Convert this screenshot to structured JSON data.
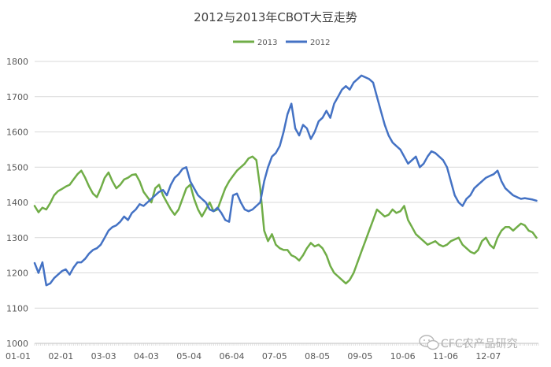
{
  "chart_data": {
    "type": "line",
    "title": "2012与2013年CBOT大豆走势",
    "xlabel": "",
    "ylabel": "",
    "ylim": [
      1000,
      1800
    ],
    "yticks": [
      1000,
      1100,
      1200,
      1300,
      1400,
      1500,
      1600,
      1700,
      1800
    ],
    "grid": true,
    "legend_position": "top-center",
    "x_tick_labels": [
      "01-01",
      "02-01",
      "03-03",
      "04-03",
      "05-04",
      "06-04",
      "07-05",
      "08-05",
      "09-05",
      "10-06",
      "11-06",
      "12-07"
    ],
    "x_range": [
      0,
      259
    ],
    "series": [
      {
        "name": "2013",
        "color": "#70ad47",
        "x": [
          0,
          2,
          4,
          6,
          8,
          10,
          12,
          14,
          16,
          18,
          20,
          22,
          24,
          26,
          28,
          30,
          32,
          34,
          36,
          38,
          40,
          42,
          44,
          46,
          48,
          50,
          52,
          54,
          56,
          58,
          60,
          62,
          64,
          66,
          68,
          70,
          72,
          74,
          76,
          78,
          80,
          82,
          84,
          86,
          88,
          90,
          92,
          94,
          96,
          98,
          100,
          102,
          104,
          106,
          108,
          110,
          112,
          114,
          116,
          118,
          120,
          122,
          124,
          126,
          128,
          130,
          132,
          134,
          136,
          138,
          140,
          142,
          144,
          146,
          148,
          150,
          152,
          154,
          156,
          158,
          160,
          162,
          164,
          166,
          168,
          170,
          172,
          174,
          176,
          178,
          180,
          182,
          184,
          186,
          188,
          190,
          192,
          194,
          196,
          198,
          200,
          202,
          204,
          206,
          208,
          210,
          212,
          214,
          216,
          218,
          220,
          222,
          224,
          226,
          228,
          230,
          232,
          234,
          236,
          238,
          240,
          242,
          244,
          246,
          248,
          250,
          252,
          254,
          256,
          258
        ],
        "values": [
          1390,
          1372,
          1385,
          1380,
          1398,
          1420,
          1432,
          1438,
          1445,
          1450,
          1465,
          1480,
          1490,
          1470,
          1445,
          1425,
          1415,
          1440,
          1470,
          1485,
          1460,
          1440,
          1450,
          1465,
          1470,
          1478,
          1480,
          1460,
          1430,
          1415,
          1400,
          1440,
          1450,
          1420,
          1400,
          1380,
          1365,
          1380,
          1410,
          1440,
          1450,
          1410,
          1380,
          1360,
          1380,
          1400,
          1375,
          1380,
          1410,
          1440,
          1460,
          1475,
          1490,
          1500,
          1510,
          1525,
          1530,
          1520,
          1440,
          1320,
          1290,
          1310,
          1280,
          1270,
          1265,
          1265,
          1250,
          1245,
          1235,
          1250,
          1270,
          1285,
          1275,
          1280,
          1270,
          1250,
          1220,
          1200,
          1190,
          1180,
          1170,
          1180,
          1200,
          1230,
          1260,
          1290,
          1320,
          1350,
          1380,
          1370,
          1360,
          1365,
          1380,
          1370,
          1375,
          1390,
          1350,
          1330,
          1310,
          1300,
          1290,
          1280,
          1285,
          1290,
          1280,
          1275,
          1280,
          1290,
          1295,
          1300,
          1280,
          1270,
          1260,
          1255,
          1265,
          1290,
          1300,
          1280,
          1270,
          1300,
          1320,
          1330,
          1330,
          1320,
          1330,
          1340,
          1335,
          1320,
          1315,
          1300
        ]
      },
      {
        "name": "2012",
        "color": "#4472c4",
        "x": [
          0,
          2,
          4,
          6,
          8,
          10,
          12,
          14,
          16,
          18,
          20,
          22,
          24,
          26,
          28,
          30,
          32,
          34,
          36,
          38,
          40,
          42,
          44,
          46,
          48,
          50,
          52,
          54,
          56,
          58,
          60,
          62,
          64,
          66,
          68,
          70,
          72,
          74,
          76,
          78,
          80,
          82,
          84,
          86,
          88,
          90,
          92,
          94,
          96,
          98,
          100,
          102,
          104,
          106,
          108,
          110,
          112,
          114,
          116,
          118,
          120,
          122,
          124,
          126,
          128,
          130,
          132,
          134,
          136,
          138,
          140,
          142,
          144,
          146,
          148,
          150,
          152,
          154,
          156,
          158,
          160,
          162,
          164,
          166,
          168,
          170,
          172,
          174,
          176,
          178,
          180,
          182,
          184,
          186,
          188,
          190,
          192,
          194,
          196,
          198,
          200,
          202,
          204,
          206,
          208,
          210,
          212,
          214,
          216,
          218,
          220,
          222,
          224,
          226,
          228,
          230,
          232,
          234,
          236,
          238,
          240,
          242,
          244,
          246,
          248,
          250,
          252,
          254,
          256,
          258
        ],
        "values": [
          1228,
          1200,
          1230,
          1165,
          1170,
          1185,
          1195,
          1205,
          1210,
          1195,
          1215,
          1230,
          1230,
          1240,
          1255,
          1265,
          1270,
          1280,
          1300,
          1320,
          1330,
          1335,
          1345,
          1360,
          1350,
          1370,
          1380,
          1395,
          1390,
          1400,
          1410,
          1420,
          1430,
          1435,
          1420,
          1450,
          1470,
          1480,
          1495,
          1500,
          1460,
          1440,
          1420,
          1410,
          1400,
          1380,
          1375,
          1385,
          1370,
          1350,
          1345,
          1420,
          1425,
          1400,
          1380,
          1375,
          1380,
          1390,
          1400,
          1460,
          1500,
          1530,
          1540,
          1560,
          1600,
          1650,
          1680,
          1610,
          1590,
          1620,
          1610,
          1580,
          1600,
          1630,
          1640,
          1660,
          1640,
          1680,
          1700,
          1720,
          1730,
          1720,
          1740,
          1750,
          1760,
          1755,
          1750,
          1740,
          1700,
          1660,
          1620,
          1590,
          1570,
          1560,
          1550,
          1530,
          1510,
          1520,
          1530,
          1500,
          1510,
          1530,
          1545,
          1540,
          1530,
          1520,
          1500,
          1460,
          1420,
          1400,
          1390,
          1410,
          1420,
          1440,
          1450,
          1460,
          1470,
          1475,
          1480,
          1490,
          1460,
          1440,
          1430,
          1420,
          1415,
          1410,
          1412,
          1410,
          1408,
          1405
        ]
      }
    ]
  },
  "watermark": "CFC农产品研究"
}
